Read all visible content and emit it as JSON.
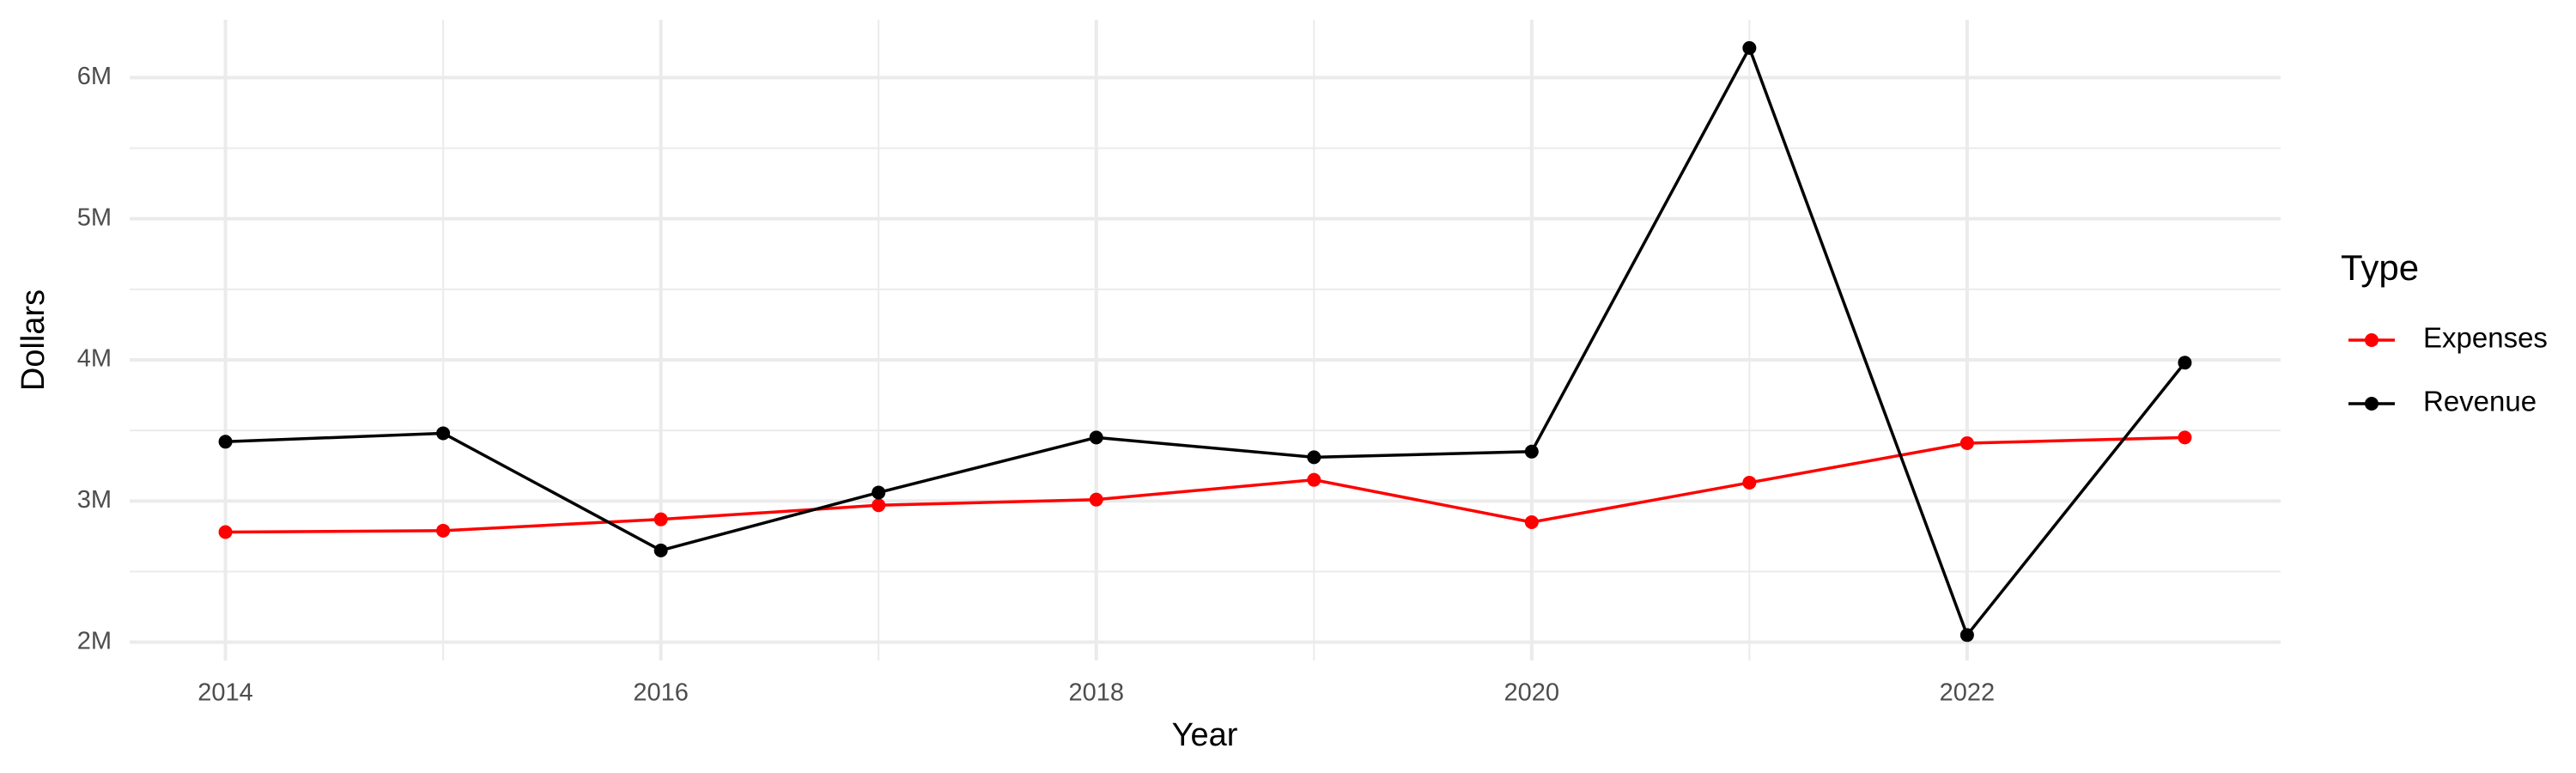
{
  "chart_data": {
    "type": "line",
    "x_label": "Year",
    "y_label": "Dollars",
    "legend_title": "Type",
    "x": [
      2014,
      2015,
      2016,
      2017,
      2018,
      2019,
      2020,
      2021,
      2022,
      2023
    ],
    "series": [
      {
        "name": "Expenses",
        "color": "#ff0000",
        "values": [
          2780000,
          2790000,
          2870000,
          2970000,
          3010000,
          3150000,
          2850000,
          3130000,
          3410000,
          3450000
        ]
      },
      {
        "name": "Revenue",
        "color": "#000000",
        "values": [
          3420000,
          3480000,
          2650000,
          3060000,
          3450000,
          3310000,
          3350000,
          6210000,
          2050000,
          3980000
        ]
      }
    ],
    "xlim": [
      2013.56,
      2023.44
    ],
    "xticks": [
      2014,
      2016,
      2018,
      2020,
      2022
    ],
    "ylim": [
      1870000,
      6410000
    ],
    "yticks": [
      {
        "value": 2000000,
        "label": "2M"
      },
      {
        "value": 3000000,
        "label": "3M"
      },
      {
        "value": 4000000,
        "label": "4M"
      },
      {
        "value": 5000000,
        "label": "5M"
      },
      {
        "value": 6000000,
        "label": "6M"
      }
    ],
    "grid": true,
    "legend": "right"
  }
}
